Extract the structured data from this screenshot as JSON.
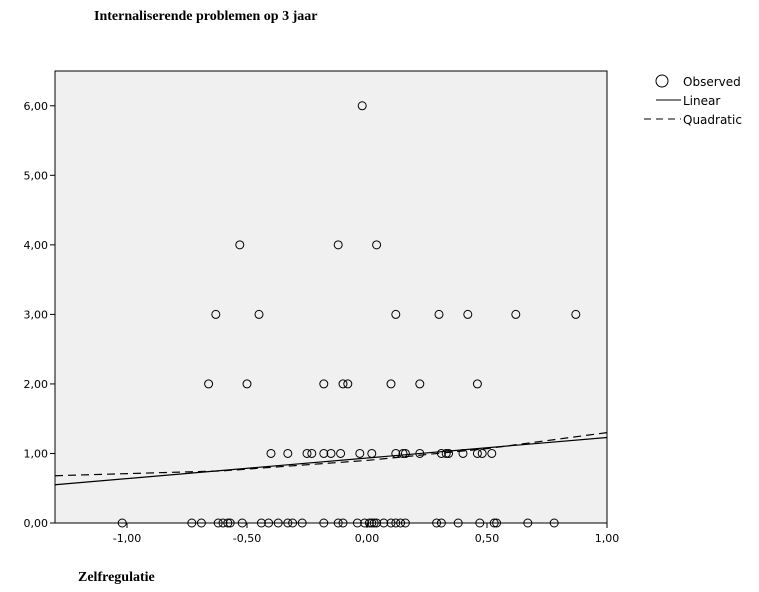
{
  "chart_data": {
    "type": "scatter",
    "title": "Internaliserende problemen op 3 jaar",
    "xlabel": "Zelfregulatie",
    "ylabel": "",
    "xlim": [
      -1.3,
      1.0
    ],
    "ylim": [
      0.0,
      6.5
    ],
    "x_ticks": [
      -1.0,
      -0.5,
      0.0,
      0.5,
      1.0
    ],
    "x_tick_labels": [
      "-1,00",
      "-0,50",
      "0,00",
      "0,50",
      "1,00"
    ],
    "y_ticks": [
      0,
      1,
      2,
      3,
      4,
      5,
      6
    ],
    "y_tick_labels": [
      "0,00",
      "1,00",
      "2,00",
      "3,00",
      "4,00",
      "5,00",
      "6,00"
    ],
    "grid": false,
    "legend_position": "top-right",
    "background_color": "#f0f0f0",
    "series": [
      {
        "name": "Observed",
        "kind": "points",
        "points": [
          [
            -0.02,
            6
          ],
          [
            -0.53,
            4
          ],
          [
            -0.12,
            4
          ],
          [
            0.04,
            4
          ],
          [
            -0.63,
            3
          ],
          [
            -0.45,
            3
          ],
          [
            0.12,
            3
          ],
          [
            0.3,
            3
          ],
          [
            0.42,
            3
          ],
          [
            0.62,
            3
          ],
          [
            0.87,
            3
          ],
          [
            -0.66,
            2
          ],
          [
            -0.5,
            2
          ],
          [
            -0.18,
            2
          ],
          [
            -0.1,
            2
          ],
          [
            -0.08,
            2
          ],
          [
            0.1,
            2
          ],
          [
            0.22,
            2
          ],
          [
            0.46,
            2
          ],
          [
            -0.4,
            1
          ],
          [
            -0.33,
            1
          ],
          [
            -0.25,
            1
          ],
          [
            -0.23,
            1
          ],
          [
            -0.18,
            1
          ],
          [
            -0.15,
            1
          ],
          [
            -0.11,
            1
          ],
          [
            -0.03,
            1
          ],
          [
            0.02,
            1
          ],
          [
            0.12,
            1
          ],
          [
            0.15,
            1
          ],
          [
            0.16,
            1
          ],
          [
            0.22,
            1
          ],
          [
            0.31,
            1
          ],
          [
            0.33,
            1
          ],
          [
            0.34,
            1
          ],
          [
            0.4,
            1
          ],
          [
            0.46,
            1
          ],
          [
            0.48,
            1
          ],
          [
            0.52,
            1
          ],
          [
            -1.02,
            0
          ],
          [
            -0.73,
            0
          ],
          [
            -0.69,
            0
          ],
          [
            -0.62,
            0
          ],
          [
            -0.6,
            0
          ],
          [
            -0.58,
            0
          ],
          [
            -0.57,
            0
          ],
          [
            -0.52,
            0
          ],
          [
            -0.44,
            0
          ],
          [
            -0.41,
            0
          ],
          [
            -0.37,
            0
          ],
          [
            -0.33,
            0
          ],
          [
            -0.31,
            0
          ],
          [
            -0.27,
            0
          ],
          [
            -0.18,
            0
          ],
          [
            -0.12,
            0
          ],
          [
            -0.1,
            0
          ],
          [
            -0.04,
            0
          ],
          [
            -0.01,
            0
          ],
          [
            0.01,
            0
          ],
          [
            0.02,
            0
          ],
          [
            0.03,
            0
          ],
          [
            0.04,
            0
          ],
          [
            0.07,
            0
          ],
          [
            0.1,
            0
          ],
          [
            0.12,
            0
          ],
          [
            0.14,
            0
          ],
          [
            0.16,
            0
          ],
          [
            0.29,
            0
          ],
          [
            0.31,
            0
          ],
          [
            0.38,
            0
          ],
          [
            0.47,
            0
          ],
          [
            0.53,
            0
          ],
          [
            0.54,
            0
          ],
          [
            0.67,
            0
          ],
          [
            0.78,
            0
          ]
        ]
      },
      {
        "name": "Linear",
        "kind": "line",
        "style": "solid",
        "x": [
          -1.3,
          1.0
        ],
        "y": [
          0.55,
          1.23
        ]
      },
      {
        "name": "Quadratic",
        "kind": "line",
        "style": "dashed",
        "x": [
          -1.3,
          -0.6,
          0.0,
          0.5,
          1.0
        ],
        "y": [
          0.68,
          0.75,
          0.9,
          1.07,
          1.3
        ]
      }
    ]
  }
}
